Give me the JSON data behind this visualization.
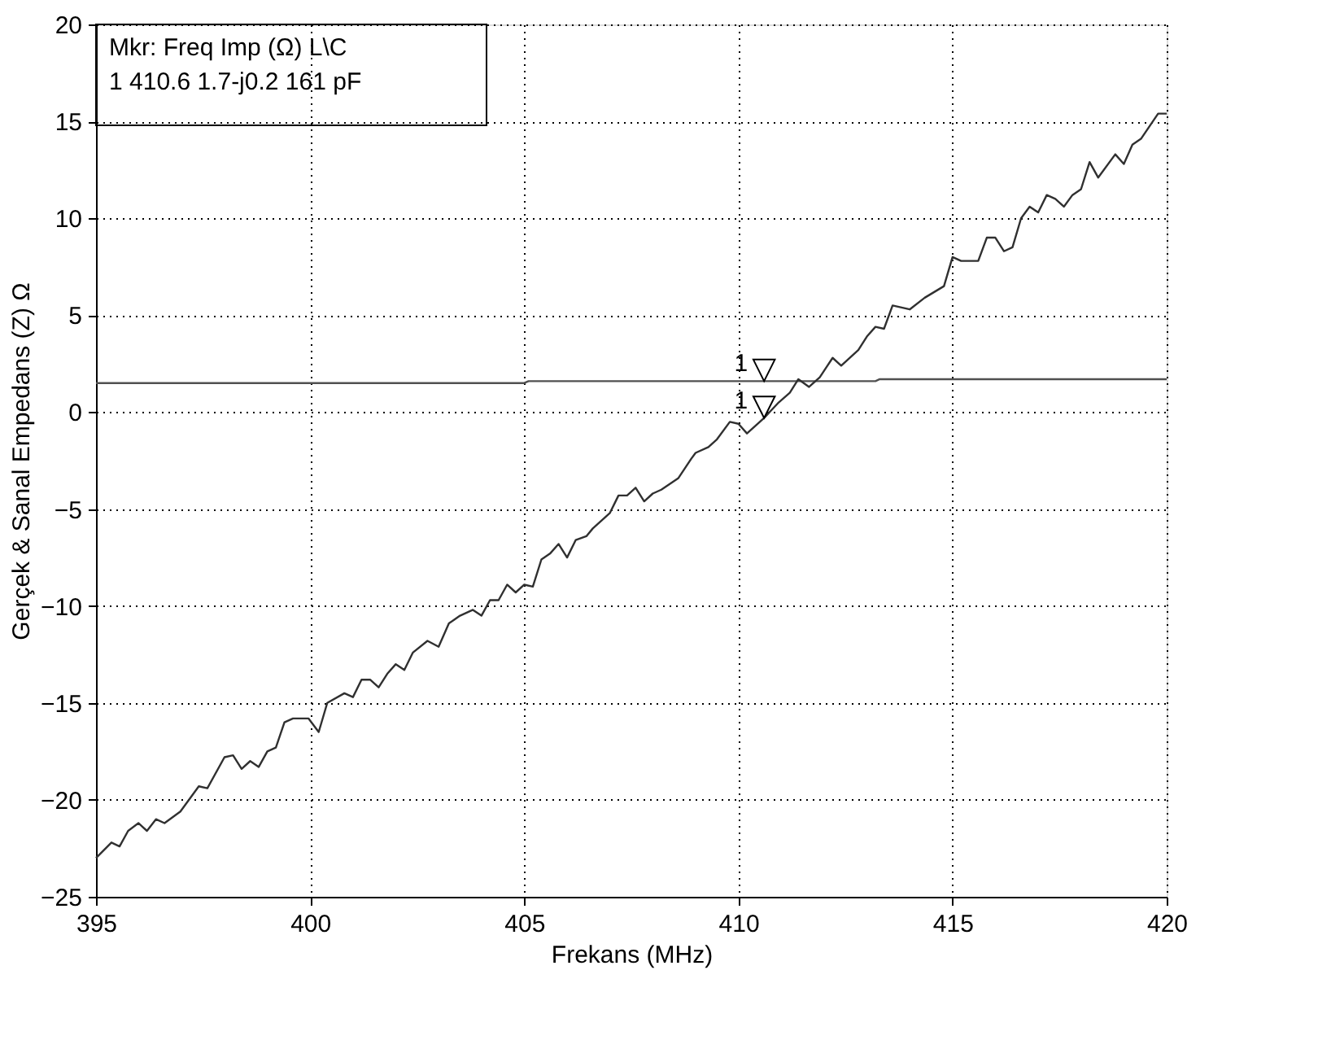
{
  "chart_data": {
    "type": "line",
    "xlabel": "Frekans (MHz)",
    "ylabel": "Gerçek & Sanal Empedans (Z) Ω",
    "xlim": [
      395,
      420
    ],
    "xticks": [
      395,
      400,
      405,
      410,
      415,
      420
    ],
    "ylim": [
      -25,
      20
    ],
    "yticks": [
      -25,
      -20,
      -15,
      -10,
      -5,
      0,
      5,
      10,
      15,
      20
    ],
    "grid": true,
    "line_style": "solid",
    "marker": "none",
    "series": [
      {
        "color": "#505050",
        "x": [
          395,
          405,
          405.1,
          413.2,
          413.3,
          420
        ],
        "values": [
          1.5,
          1.5,
          1.6,
          1.6,
          1.7,
          1.7
        ]
      },
      {
        "color": "#303030",
        "x": [
          395,
          395.36,
          395.55,
          395.75,
          395.99,
          396.19,
          396.4,
          396.6,
          396.97,
          397.4,
          397.6,
          398.0,
          398.2,
          398.4,
          398.6,
          398.8,
          399.0,
          399.2,
          399.4,
          399.6,
          399.96,
          400.2,
          400.4,
          400.8,
          401.0,
          401.2,
          401.4,
          401.6,
          401.8,
          402.0,
          402.2,
          402.4,
          402.74,
          403.0,
          403.24,
          403.5,
          403.8,
          404.0,
          404.2,
          404.4,
          404.6,
          404.8,
          405.0,
          405.2,
          405.4,
          405.6,
          405.8,
          406.0,
          406.2,
          406.45,
          406.6,
          406.8,
          407.0,
          407.2,
          407.4,
          407.6,
          407.8,
          408.0,
          408.2,
          408.6,
          408.9,
          409.0,
          409.3,
          409.5,
          409.8,
          410.0,
          410.2,
          410.4,
          410.6,
          410.94,
          411.2,
          411.4,
          411.65,
          411.9,
          412.2,
          412.4,
          412.8,
          413.0,
          413.2,
          413.4,
          413.6,
          414.0,
          414.35,
          414.8,
          415.0,
          415.2,
          415.6,
          415.8,
          416.0,
          416.2,
          416.4,
          416.6,
          416.8,
          417.0,
          417.2,
          417.4,
          417.6,
          417.8,
          418.0,
          418.2,
          418.4,
          418.8,
          419.0,
          419.2,
          419.4,
          419.8,
          420
        ],
        "values": [
          -23.0,
          -22.2,
          -22.4,
          -21.6,
          -21.2,
          -21.6,
          -21.0,
          -21.2,
          -20.6,
          -19.3,
          -19.4,
          -17.8,
          -17.7,
          -18.4,
          -18.0,
          -18.3,
          -17.5,
          -17.3,
          -16.0,
          -15.8,
          -15.8,
          -16.5,
          -15.0,
          -14.5,
          -14.7,
          -13.8,
          -13.8,
          -14.2,
          -13.5,
          -13.0,
          -13.3,
          -12.4,
          -11.8,
          -12.1,
          -10.9,
          -10.5,
          -10.2,
          -10.5,
          -9.7,
          -9.7,
          -8.9,
          -9.3,
          -8.9,
          -9.0,
          -7.6,
          -7.3,
          -6.8,
          -7.5,
          -6.6,
          -6.4,
          -6.0,
          -5.6,
          -5.2,
          -4.3,
          -4.3,
          -3.9,
          -4.6,
          -4.2,
          -4.0,
          -3.4,
          -2.4,
          -2.1,
          -1.8,
          -1.4,
          -0.5,
          -0.6,
          -1.1,
          -0.7,
          -0.3,
          0.5,
          1.0,
          1.7,
          1.3,
          1.8,
          2.8,
          2.4,
          3.2,
          3.9,
          4.4,
          4.3,
          5.5,
          5.3,
          5.9,
          6.5,
          8.0,
          7.8,
          7.8,
          9.0,
          9.0,
          8.3,
          8.5,
          10.0,
          10.6,
          10.3,
          11.2,
          11.0,
          10.6,
          11.2,
          11.5,
          12.9,
          12.1,
          13.3,
          12.8,
          13.8,
          14.1,
          15.4,
          15.4
        ]
      }
    ],
    "annotations": [
      {
        "text": "1",
        "x": 410.6,
        "y": 1.6
      },
      {
        "text": "1",
        "x": 410.6,
        "y": -0.3
      },
      "Mkr:  Freq  Imp (Ω)    L\\C",
      "  1    410.6 1.7-j0.2 161 pF"
    ]
  }
}
